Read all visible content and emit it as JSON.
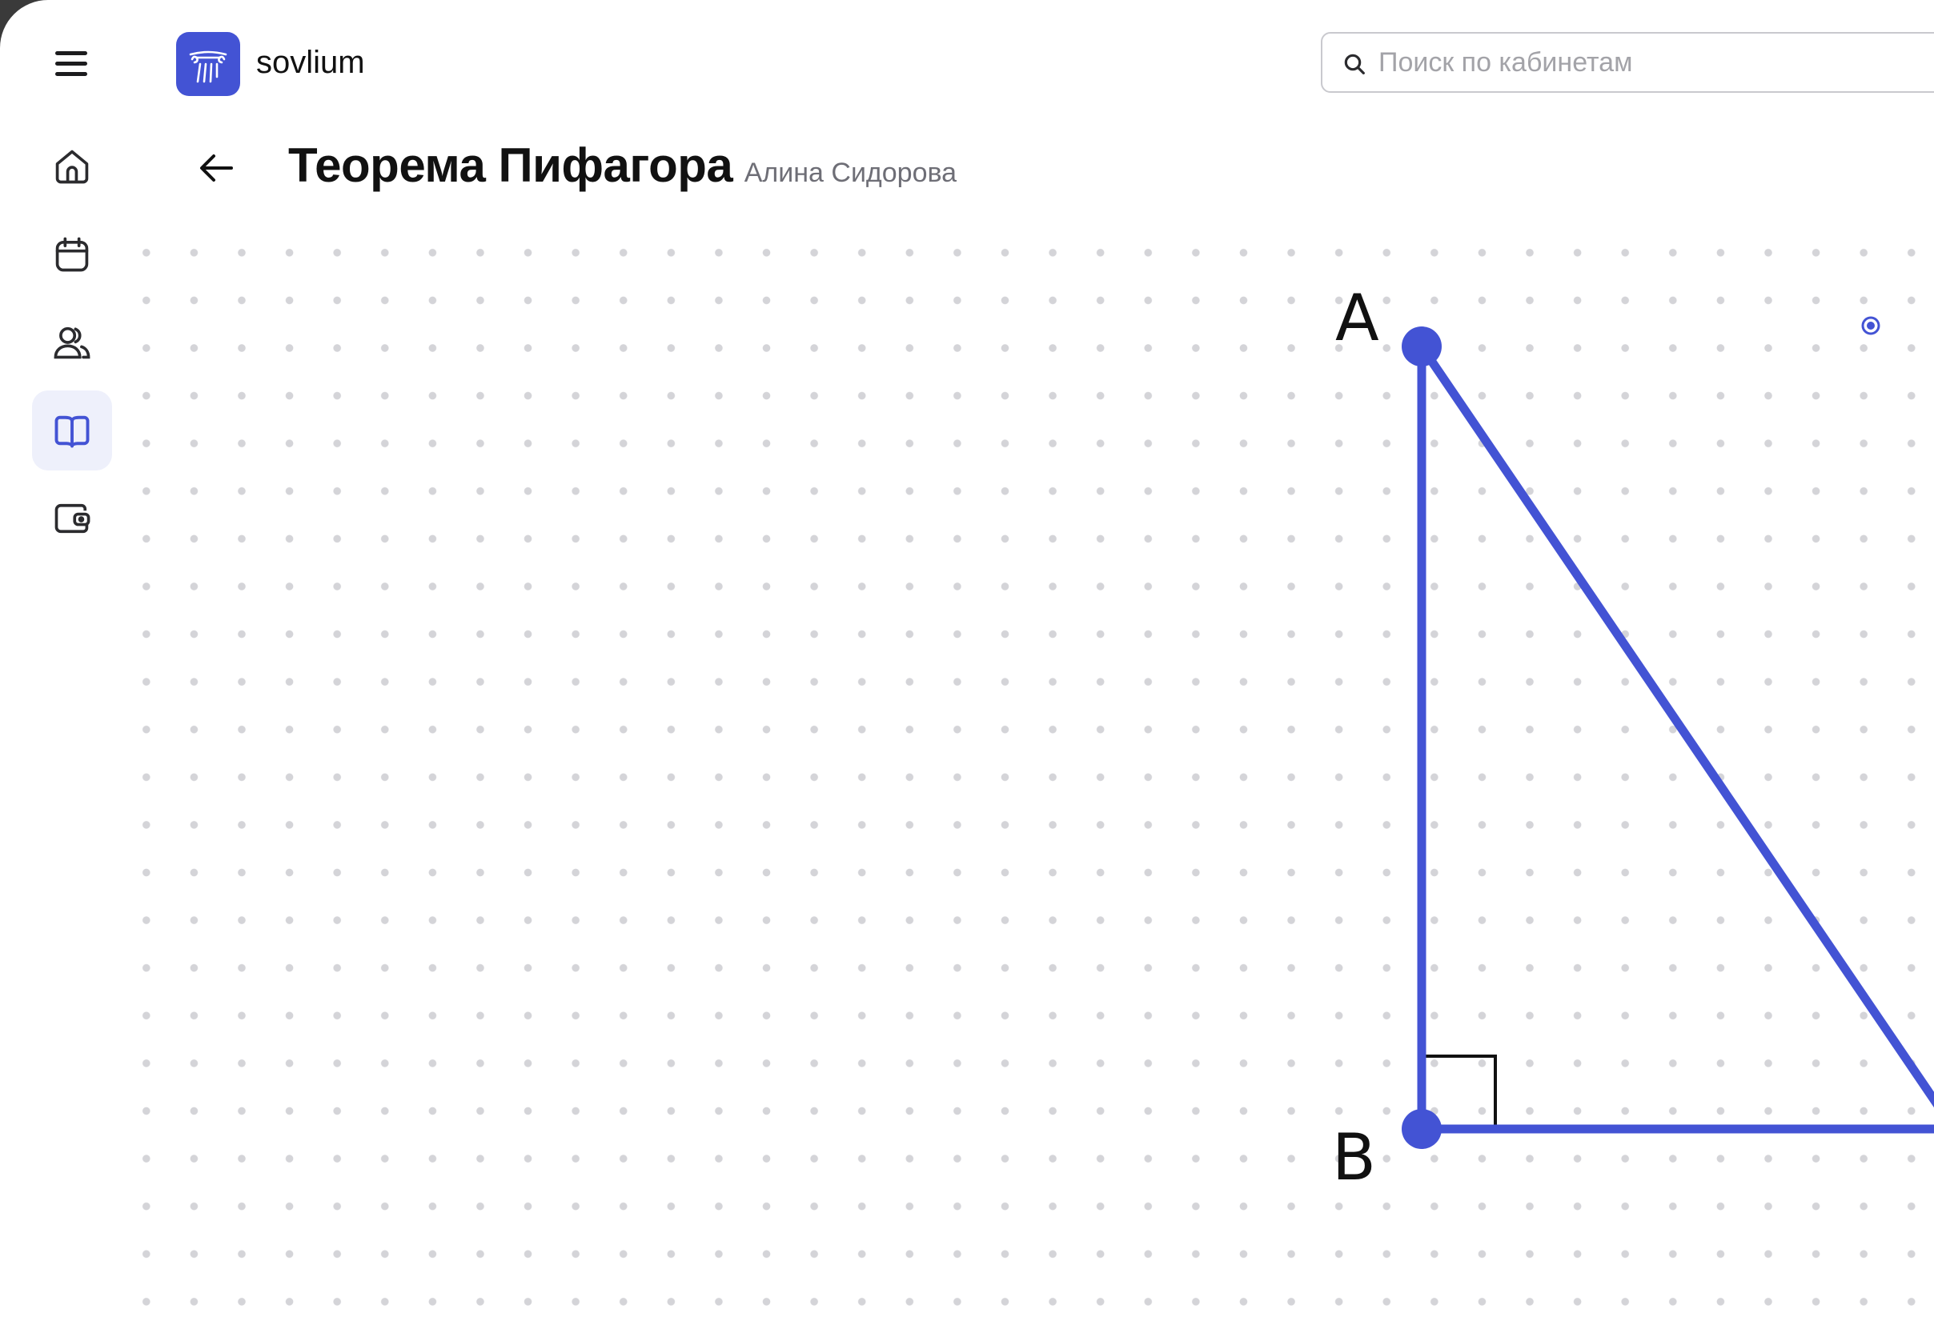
{
  "app": {
    "name": "sovlium",
    "accent_color": "#4353d4"
  },
  "header": {
    "search_placeholder": "Поиск по кабинетам",
    "search_value": ""
  },
  "sidebar": {
    "items": [
      {
        "id": "home",
        "icon": "home-icon",
        "active": false
      },
      {
        "id": "calendar",
        "icon": "calendar-icon",
        "active": false
      },
      {
        "id": "users",
        "icon": "users-icon",
        "active": false
      },
      {
        "id": "courses",
        "icon": "book-icon",
        "active": true
      },
      {
        "id": "wallet",
        "icon": "wallet-icon",
        "active": false
      }
    ]
  },
  "page": {
    "title": "Теорема Пифагора",
    "author": "Алина Сидорова"
  },
  "board": {
    "shape": "right-triangle",
    "stroke_color": "#4353d4",
    "vertices": [
      {
        "label": "A"
      },
      {
        "label": "B"
      }
    ],
    "right_angle_at": "B"
  }
}
